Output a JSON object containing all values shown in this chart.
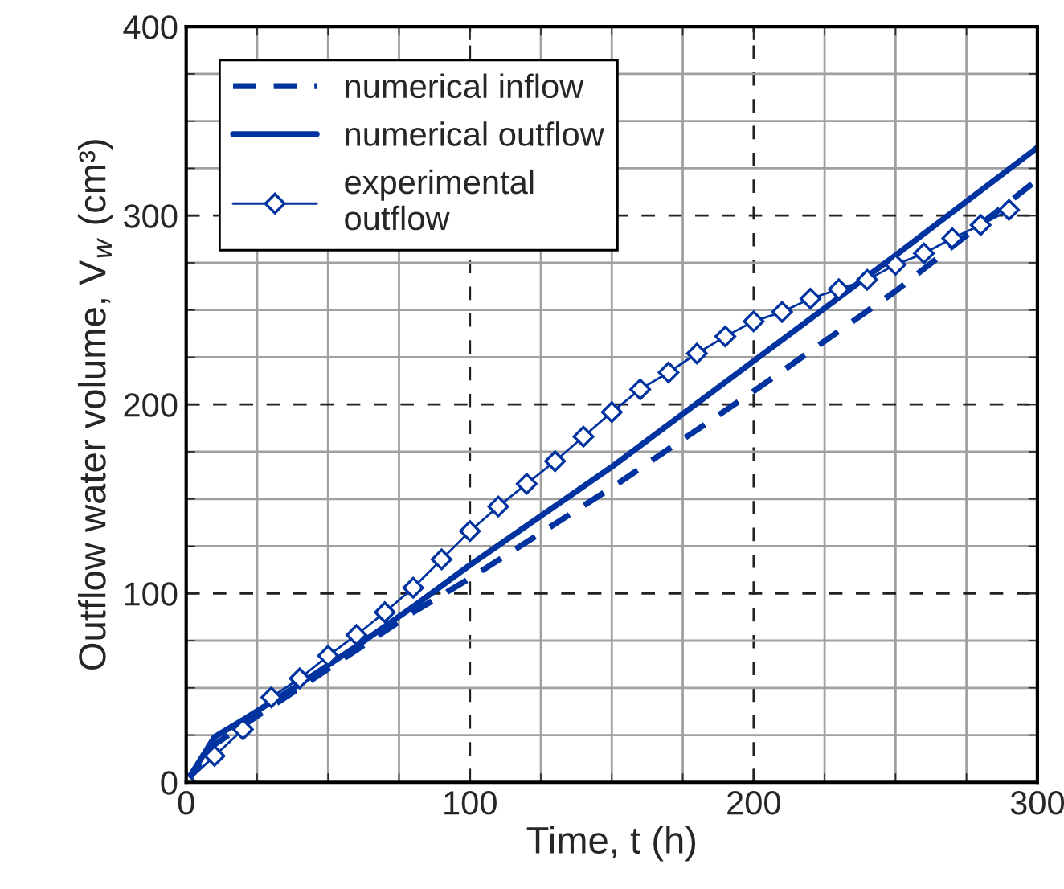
{
  "chart_data": {
    "type": "line",
    "xlabel": "Time, t (h)",
    "ylabel": "Outflow water volume, V$_{w}$ (cm³)",
    "xlim": [
      0,
      300
    ],
    "ylim": [
      0,
      400
    ],
    "xticks": [
      0,
      100,
      200,
      300
    ],
    "yticks": [
      0,
      100,
      200,
      300,
      400
    ],
    "grid": true,
    "legend": "top left",
    "series": [
      {
        "name": "numerical inflow",
        "color": "#0033a0",
        "line_style": "dashed",
        "marker": "none",
        "x": [
          0,
          10,
          20,
          40,
          60,
          80,
          100,
          150,
          200,
          250,
          300
        ],
        "values": [
          0,
          20,
          30,
          50,
          70,
          90,
          108,
          156,
          207,
          260,
          319
        ]
      },
      {
        "name": "numerical outflow",
        "color": "#0033a0",
        "line_style": "solid",
        "marker": "none",
        "x": [
          0,
          10,
          20,
          40,
          60,
          80,
          100,
          150,
          200,
          250,
          300
        ],
        "values": [
          0,
          24,
          33,
          52,
          72,
          93,
          115,
          167,
          223,
          279,
          336
        ]
      },
      {
        "name": "experimental\noutflow",
        "color": "#0033a0",
        "line_style": "solid",
        "marker": "diamond",
        "x": [
          0,
          10,
          20,
          30,
          40,
          50,
          60,
          70,
          80,
          90,
          100,
          110,
          120,
          130,
          140,
          150,
          160,
          170,
          180,
          190,
          200,
          210,
          220,
          230,
          240,
          250,
          260,
          270,
          280,
          290
        ],
        "values": [
          0,
          14,
          28,
          45,
          55,
          67,
          78,
          90,
          103,
          118,
          133,
          146,
          158,
          170,
          183,
          196,
          208,
          217,
          227,
          236,
          244,
          249,
          256,
          261,
          266,
          274,
          280,
          288,
          295,
          303
        ]
      }
    ]
  }
}
